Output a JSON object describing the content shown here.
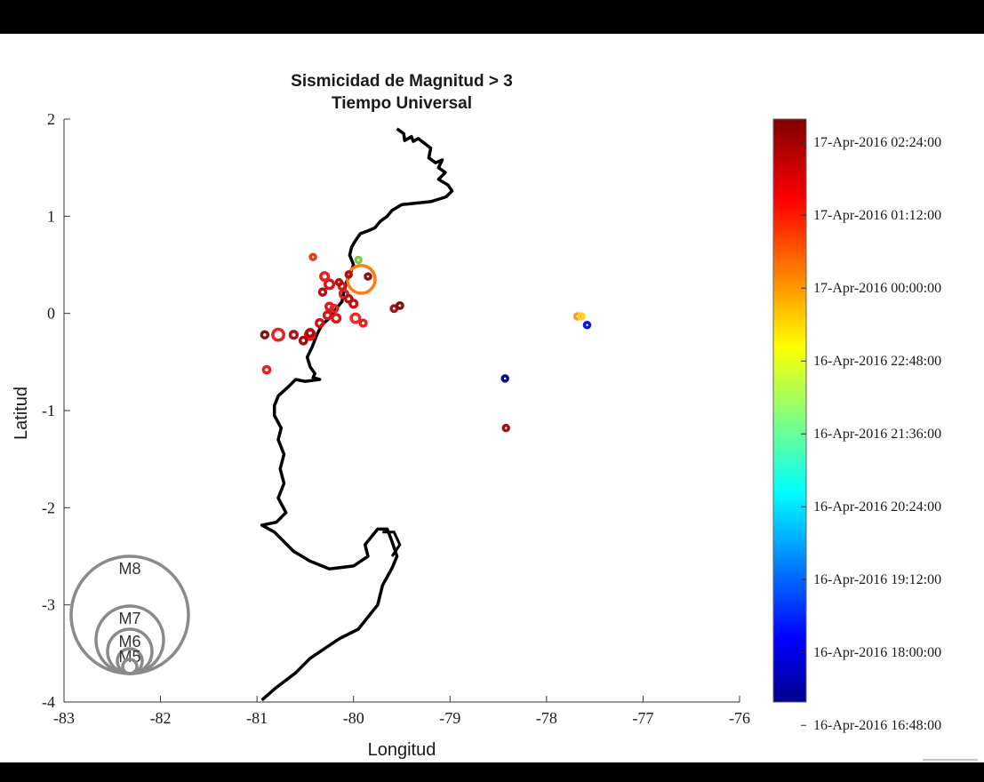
{
  "chart_data": {
    "type": "scatter",
    "title": "Sismicidad de Magnitud > 3",
    "subtitle": "Tiempo Universal",
    "xlabel": "Longitud",
    "ylabel": "Latitud",
    "xlim": [
      -83,
      -76
    ],
    "ylim": [
      -4,
      2
    ],
    "xticks": [
      "-83",
      "-82",
      "-81",
      "-80",
      "-79",
      "-78",
      "-77",
      "-76"
    ],
    "yticks": [
      "2",
      "1",
      "0",
      "-1",
      "-2",
      "-3",
      "-4"
    ],
    "colorbar": {
      "colormap": "jet",
      "tick_labels": [
        "17-Apr-2016 02:24:00",
        "17-Apr-2016 01:12:00",
        "17-Apr-2016 00:00:00",
        "16-Apr-2016 22:48:00",
        "16-Apr-2016 21:36:00",
        "16-Apr-2016 20:24:00",
        "16-Apr-2016 19:12:00",
        "16-Apr-2016 18:00:00",
        "16-Apr-2016 16:48:00"
      ],
      "tick_fractions": [
        0.96,
        0.835,
        0.71,
        0.585,
        0.46,
        0.335,
        0.21,
        0.085,
        -0.04
      ]
    },
    "magnitude_legend": [
      "M8",
      "M7",
      "M6",
      "M5"
    ],
    "events": [
      {
        "lon": -79.92,
        "lat": 0.35,
        "mag": 7.8,
        "color": "#ff7a1a"
      },
      {
        "lon": -80.78,
        "lat": -0.22,
        "mag": 5.5,
        "color": "#e82222"
      },
      {
        "lon": -80.45,
        "lat": -0.22,
        "mag": 5.1,
        "color": "#e81a1a"
      },
      {
        "lon": -80.25,
        "lat": 0.3,
        "mag": 4.9,
        "color": "#d81515"
      },
      {
        "lon": -79.98,
        "lat": -0.05,
        "mag": 4.9,
        "color": "#ef2b1b"
      },
      {
        "lon": -80.3,
        "lat": 0.38,
        "mag": 4.6,
        "color": "#e81e1e"
      },
      {
        "lon": -80.18,
        "lat": -0.05,
        "mag": 4.6,
        "color": "#d81a1a"
      },
      {
        "lon": -80.1,
        "lat": 0.2,
        "mag": 4.6,
        "color": "#e52020"
      },
      {
        "lon": -80.62,
        "lat": -0.22,
        "mag": 4.4,
        "color": "#b81010"
      },
      {
        "lon": -80.35,
        "lat": -0.1,
        "mag": 4.4,
        "color": "#cc1212"
      },
      {
        "lon": -80.0,
        "lat": 0.1,
        "mag": 4.4,
        "color": "#c41313"
      },
      {
        "lon": -80.45,
        "lat": -0.2,
        "mag": 4.3,
        "color": "#a81010"
      },
      {
        "lon": -80.25,
        "lat": 0.07,
        "mag": 4.3,
        "color": "#e01a1a"
      },
      {
        "lon": -80.27,
        "lat": -0.02,
        "mag": 4.3,
        "color": "#d01818"
      },
      {
        "lon": -80.2,
        "lat": 0.05,
        "mag": 4.2,
        "color": "#e52222"
      },
      {
        "lon": -80.52,
        "lat": -0.28,
        "mag": 4.2,
        "color": "#a00d0d"
      },
      {
        "lon": -80.05,
        "lat": 0.15,
        "mag": 4.2,
        "color": "#bb1111"
      },
      {
        "lon": -80.9,
        "lat": -0.58,
        "mag": 4.2,
        "color": "#e82020"
      },
      {
        "lon": -80.32,
        "lat": 0.22,
        "mag": 4.1,
        "color": "#b41111"
      },
      {
        "lon": -80.92,
        "lat": -0.22,
        "mag": 4.1,
        "color": "#8b0f0f"
      },
      {
        "lon": -80.12,
        "lat": 0.28,
        "mag": 4.0,
        "color": "#d01a1a"
      },
      {
        "lon": -79.9,
        "lat": -0.1,
        "mag": 4.0,
        "color": "#e82020"
      },
      {
        "lon": -79.58,
        "lat": 0.05,
        "mag": 3.9,
        "color": "#a11212"
      },
      {
        "lon": -79.52,
        "lat": 0.08,
        "mag": 3.9,
        "color": "#8b0a0a"
      },
      {
        "lon": -79.85,
        "lat": 0.38,
        "mag": 3.7,
        "color": "#8b1010"
      },
      {
        "lon": -80.15,
        "lat": 0.32,
        "mag": 3.6,
        "color": "#b01010"
      },
      {
        "lon": -80.42,
        "lat": 0.58,
        "mag": 3.5,
        "color": "#f03b1b"
      },
      {
        "lon": -80.05,
        "lat": 0.4,
        "mag": 3.4,
        "color": "#a81212"
      },
      {
        "lon": -79.95,
        "lat": 0.55,
        "mag": 3.2,
        "color": "#7ac943"
      },
      {
        "lon": -77.68,
        "lat": -0.03,
        "mag": 3.4,
        "color": "#f0a020"
      },
      {
        "lon": -77.64,
        "lat": -0.03,
        "mag": 3.3,
        "color": "#ffd21a"
      },
      {
        "lon": -77.58,
        "lat": -0.12,
        "mag": 3.3,
        "color": "#0a14e6"
      },
      {
        "lon": -78.43,
        "lat": -0.67,
        "mag": 3.2,
        "color": "#0a0a8c"
      },
      {
        "lon": -78.42,
        "lat": -1.18,
        "mag": 3.4,
        "color": "#a01414"
      }
    ]
  }
}
